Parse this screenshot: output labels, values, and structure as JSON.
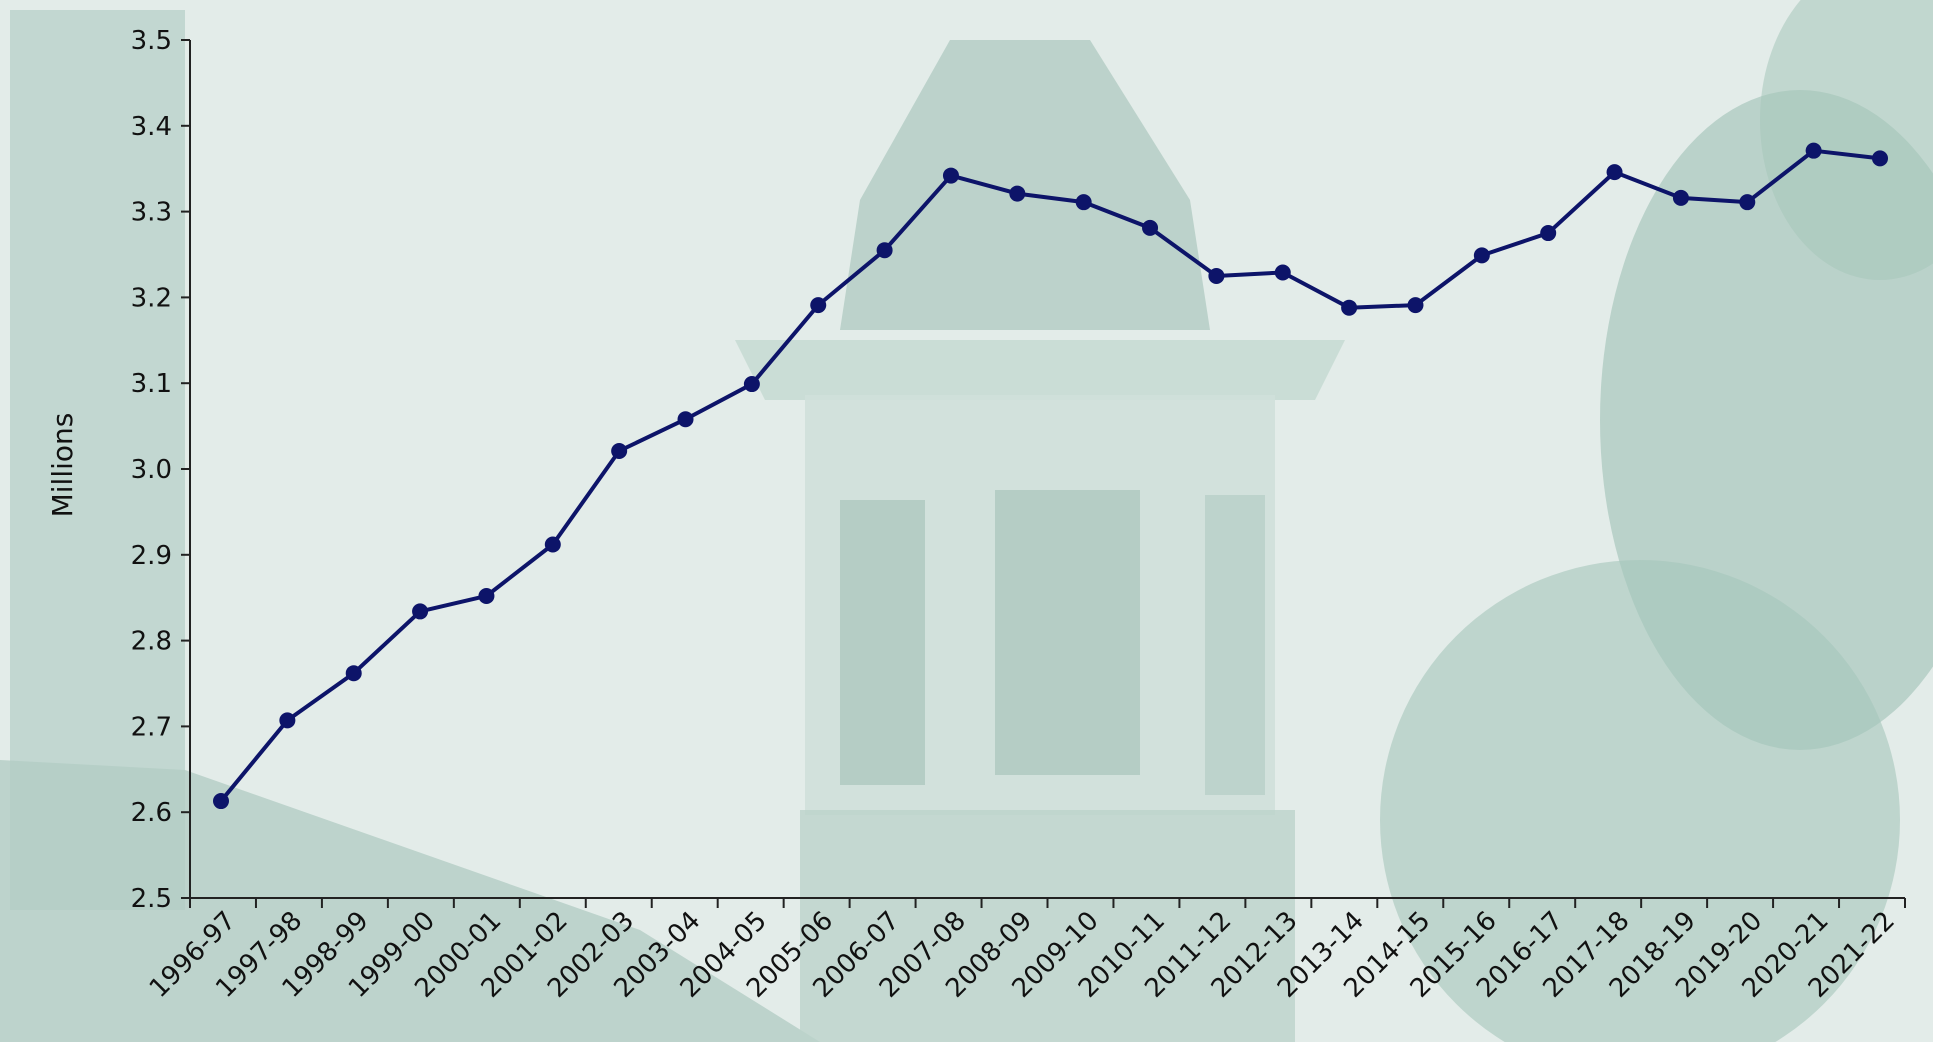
{
  "chart_data": {
    "type": "line",
    "title": "",
    "xlabel": "",
    "ylabel": "Millions",
    "ylim": [
      2.5,
      3.5
    ],
    "yticks": [
      "2.5",
      "2.6",
      "2.7",
      "2.8",
      "2.9",
      "3.0",
      "3.1",
      "3.2",
      "3.3",
      "3.4",
      "3.5"
    ],
    "grid": false,
    "legend": "none",
    "categories": [
      "1996-97",
      "1997-98",
      "1998-99",
      "1999-00",
      "2000-01",
      "2001-02",
      "2002-03",
      "2003-04",
      "2004-05",
      "2005-06",
      "2006-07",
      "2007-08",
      "2008-09",
      "2009-10",
      "2010-11",
      "2011-12",
      "2012-13",
      "2013-14",
      "2014-15",
      "2015-16",
      "2016-17",
      "2017-18",
      "2018-19",
      "2019-20",
      "2020-21",
      "2021-22"
    ],
    "series": [
      {
        "values": [
          2.613,
          2.707,
          2.762,
          2.834,
          2.852,
          2.912,
          3.021,
          3.058,
          3.099,
          3.191,
          3.255,
          3.342,
          3.321,
          3.311,
          3.281,
          3.225,
          3.229,
          3.188,
          3.191,
          3.249,
          3.275,
          3.346,
          3.316,
          3.311,
          3.371,
          3.362
        ],
        "color": "#0d1469"
      }
    ]
  },
  "colors": {
    "background": "#dfe9e6",
    "photo_tint": "#a9c9bf",
    "line": "#0d1469",
    "axis": "#222222"
  }
}
